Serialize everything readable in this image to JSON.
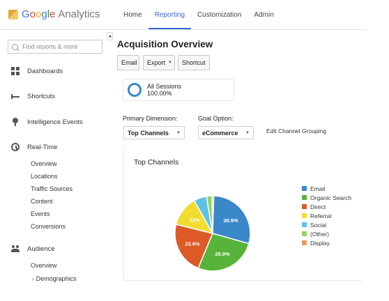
{
  "app": {
    "logo_google": "Google",
    "logo_analytics": "Analytics"
  },
  "nav": {
    "tabs": [
      {
        "label": "Home",
        "active": false
      },
      {
        "label": "Reporting",
        "active": true
      },
      {
        "label": "Customization",
        "active": false
      },
      {
        "label": "Admin",
        "active": false
      }
    ]
  },
  "sidebar": {
    "search_placeholder": "Find reports & more",
    "items": [
      {
        "label": "Dashboards",
        "icon": "grid-icon"
      },
      {
        "label": "Shortcuts",
        "icon": "shortcuts-icon"
      },
      {
        "label": "Intelligence Events",
        "icon": "bulb-icon"
      },
      {
        "label": "Real-Time",
        "icon": "clock-icon"
      },
      {
        "label": "Audience",
        "icon": "people-icon"
      }
    ],
    "realtime_sub": [
      "Overview",
      "Locations",
      "Traffic Sources",
      "Content",
      "Events",
      "Conversions"
    ],
    "audience_sub": [
      "Overview",
      "Demographics"
    ],
    "collapse_glyph": "◂"
  },
  "main": {
    "title": "Acquisition Overview",
    "buttons": {
      "email": "Email",
      "export": "Export",
      "shortcut": "Shortcut"
    },
    "segment": {
      "name": "All Sessions",
      "percent": "100.00%"
    },
    "primary_dimension_label": "Primary Dimension:",
    "goal_option_label": "Goal Option:",
    "primary_dimension_value": "Top Channels",
    "goal_option_value": "eCommerce",
    "edit_grouping": "Edit Channel Grouping"
  },
  "chart_data": {
    "type": "pie",
    "title": "Top Channels",
    "legend_position": "right",
    "categories": [
      "Email",
      "Organic Search",
      "Direct",
      "Referral",
      "Social",
      "(Other)",
      "Display"
    ],
    "values": [
      28.9,
      26.9,
      22.6,
      13,
      5.5,
      2.4,
      0.7
    ],
    "data_labels": [
      "28.9%",
      "26.9%",
      "22.6%",
      "13%",
      "",
      "",
      ""
    ],
    "colors": [
      "#3a87c9",
      "#58b33a",
      "#db5a26",
      "#f2dc2f",
      "#5ec2e6",
      "#8fd465",
      "#ec9a5a"
    ]
  }
}
